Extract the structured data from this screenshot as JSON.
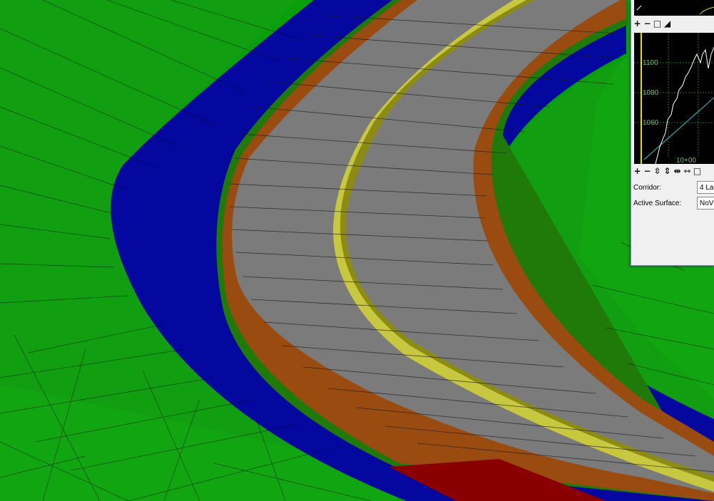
{
  "profile_view": {
    "elevation_ticks": [
      "1100",
      "1080",
      "1060"
    ],
    "station_label": "10+00"
  },
  "toolbar_top": [
    {
      "name": "zoom-in-icon",
      "glyph": "+"
    },
    {
      "name": "zoom-out-icon",
      "glyph": "−"
    },
    {
      "name": "window-icon",
      "glyph": "□"
    },
    {
      "name": "chart-icon",
      "glyph": "◢"
    }
  ],
  "toolbar_bottom": [
    {
      "name": "zoom-in-icon",
      "glyph": "+"
    },
    {
      "name": "zoom-out-icon",
      "glyph": "−"
    },
    {
      "name": "stretch-vertical-icon",
      "glyph": "⇳"
    },
    {
      "name": "shrink-vertical-icon",
      "glyph": "⇕"
    },
    {
      "name": "stretch-horizontal-icon",
      "glyph": "⇹"
    },
    {
      "name": "shrink-horizontal-icon",
      "glyph": "⇿"
    },
    {
      "name": "window-icon",
      "glyph": "□"
    }
  ],
  "fields": {
    "corridor_label": "Corridor:",
    "corridor_value": "4 La",
    "active_surface_label": "Active Surface:",
    "active_surface_value": "NoV"
  }
}
